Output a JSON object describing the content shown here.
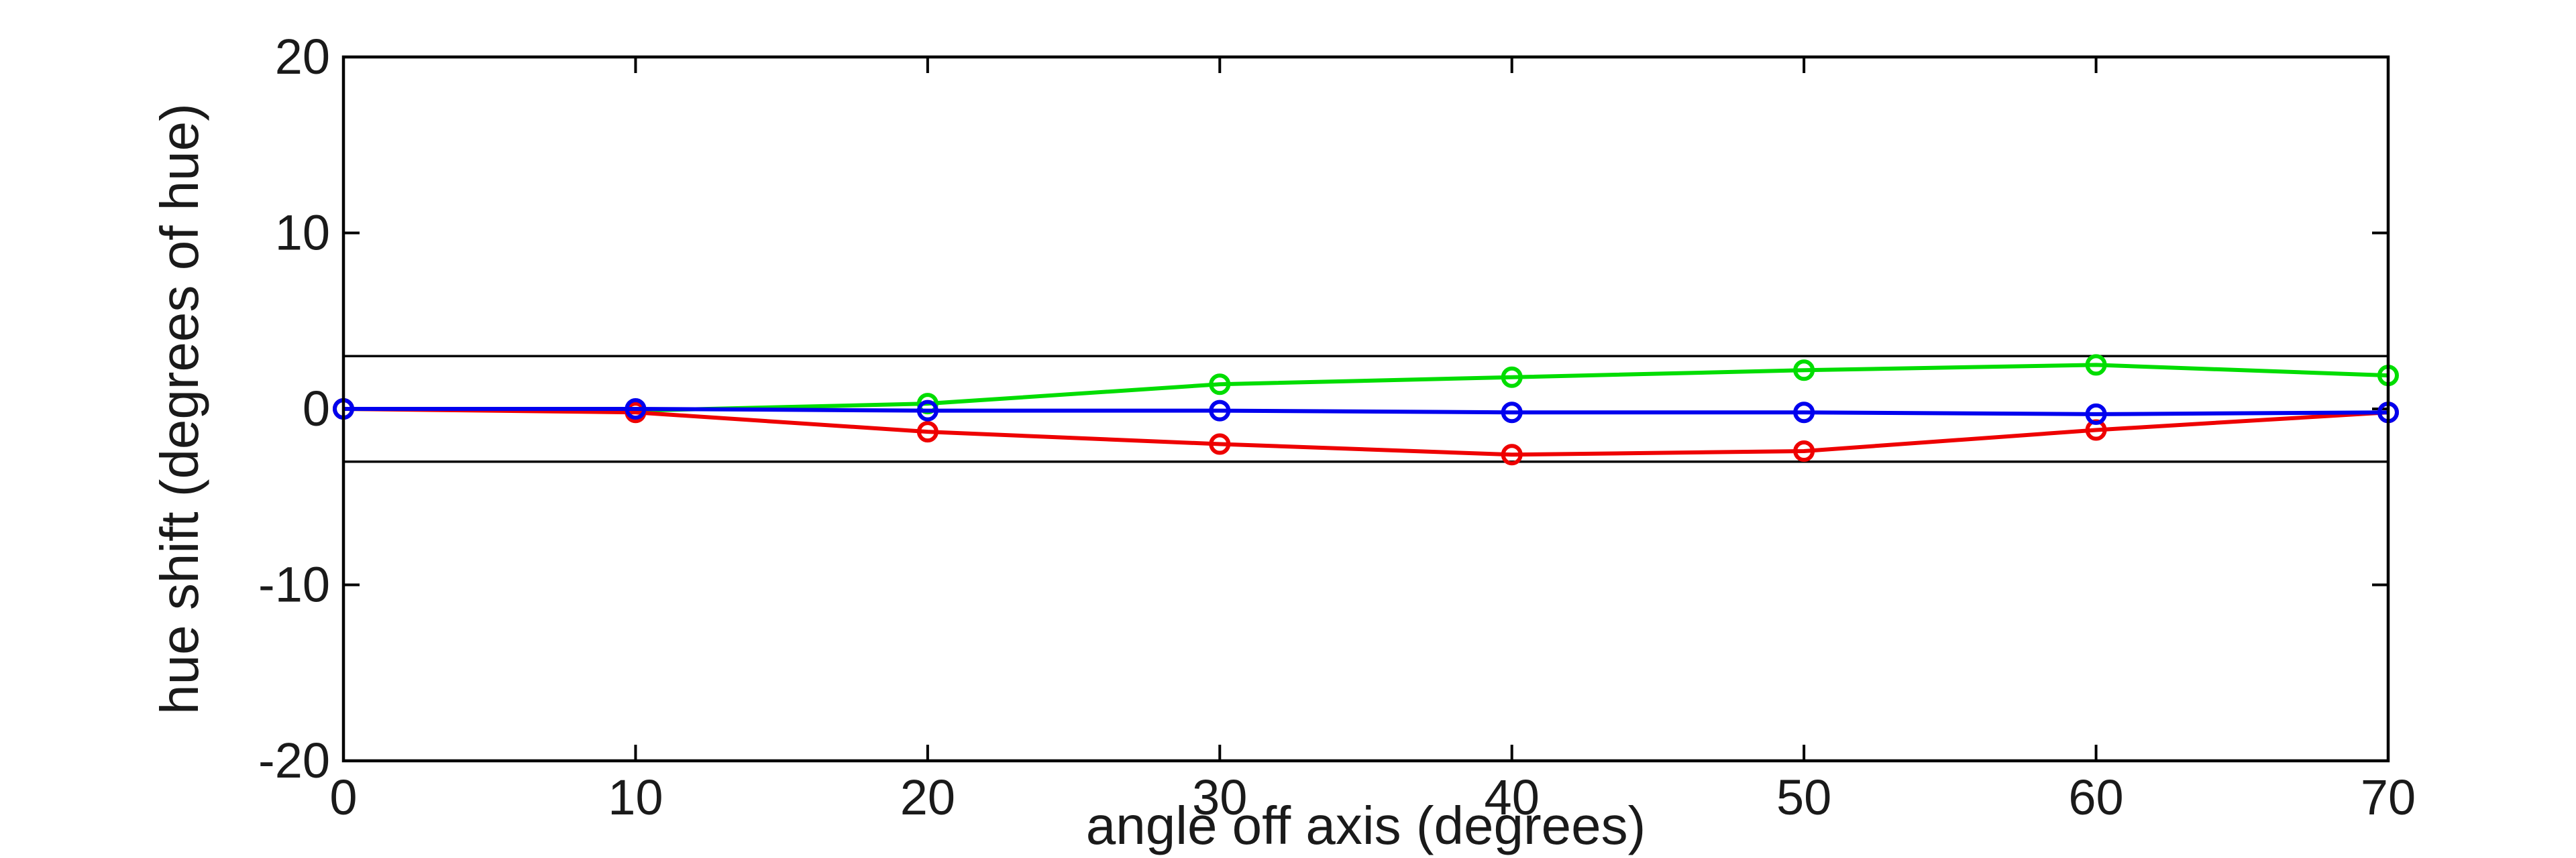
{
  "chart_data": {
    "type": "line",
    "title": "",
    "xlabel": "angle off axis (degrees)",
    "ylabel": "hue shift (degrees of hue)",
    "x": [
      0,
      10,
      20,
      30,
      40,
      50,
      60,
      70
    ],
    "series": [
      {
        "name": "green-series",
        "color": "#00dd00",
        "marker": "open-circle",
        "values": [
          0.0,
          -0.1,
          0.3,
          1.4,
          1.8,
          2.2,
          2.5,
          1.9
        ]
      },
      {
        "name": "red-series",
        "color": "#ee0000",
        "marker": "open-circle",
        "values": [
          0.0,
          -0.2,
          -1.3,
          -2.0,
          -2.6,
          -2.4,
          -1.2,
          -0.2
        ]
      },
      {
        "name": "blue-series",
        "color": "#0000ee",
        "marker": "open-circle",
        "values": [
          0.0,
          0.0,
          -0.1,
          -0.1,
          -0.2,
          -0.2,
          -0.3,
          -0.2
        ]
      }
    ],
    "reference_lines": {
      "values": [
        3,
        -3
      ],
      "color": "#000000"
    },
    "xlim": [
      0,
      70
    ],
    "ylim": [
      -20,
      20
    ],
    "xticks": [
      0,
      10,
      20,
      30,
      40,
      50,
      60,
      70
    ],
    "yticks": [
      -20,
      -10,
      0,
      10,
      20
    ],
    "grid": false,
    "box": true,
    "background_color": "#ffffff",
    "axis_color": "#000000"
  }
}
